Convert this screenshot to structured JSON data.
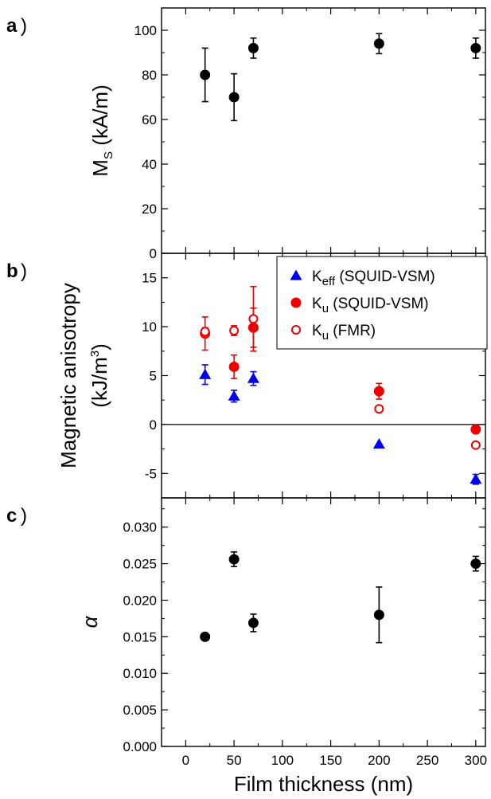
{
  "chart_data": [
    {
      "type": "scatter",
      "panel_label": "a",
      "xlabel": "",
      "ylabel": "M",
      "ylabel_sub": "S",
      "ylabel_unit": " (kA/m)",
      "xlim": [
        -25,
        310
      ],
      "ylim": [
        0,
        110
      ],
      "yticks": [
        "0",
        "20",
        "40",
        "60",
        "80",
        "100"
      ],
      "yvalues": [
        0,
        20,
        40,
        60,
        80,
        100
      ],
      "series": [
        {
          "marker": "filled-circle",
          "color": "#000000",
          "points": [
            {
              "x": 20,
              "y": 80,
              "err": 12
            },
            {
              "x": 50,
              "y": 70,
              "err": 10.5
            },
            {
              "x": 70,
              "y": 92,
              "err": 4.5
            },
            {
              "x": 200,
              "y": 94,
              "err": 4.5
            },
            {
              "x": 300,
              "y": 92,
              "err": 4.5
            }
          ]
        }
      ]
    },
    {
      "type": "scatter",
      "panel_label": "b",
      "xlabel": "",
      "ylabel_line1": "Magnetic anisotropy",
      "ylabel_line2": "(kJ/m",
      "ylabel_sup": "3",
      "ylabel_close": ")",
      "xlim": [
        -25,
        310
      ],
      "ylim": [
        -7.5,
        17.5
      ],
      "yticks": [
        "-5",
        "0",
        "5",
        "10",
        "15"
      ],
      "yvalues": [
        -5,
        0,
        5,
        10,
        15
      ],
      "zero_line": true,
      "legend": {
        "position": "top-right",
        "items": [
          {
            "main": "K",
            "sub": "eff",
            "rest": " (SQUID-VSM)"
          },
          {
            "main": "K",
            "sub": "u",
            "rest": " (SQUID-VSM)"
          },
          {
            "main": "K",
            "sub": "u",
            "rest": " (FMR)"
          }
        ]
      },
      "series": [
        {
          "marker": "filled-triangle",
          "color": "#0000ee",
          "points": [
            {
              "x": 20,
              "y": 5.1,
              "err": 1.0
            },
            {
              "x": 50,
              "y": 2.9,
              "err": 0.6
            },
            {
              "x": 70,
              "y": 4.7,
              "err": 0.7
            },
            {
              "x": 200,
              "y": -2.0,
              "err": 0
            },
            {
              "x": 300,
              "y": -5.6,
              "err": 0.5
            }
          ]
        },
        {
          "marker": "filled-circle",
          "color": "#ee0000",
          "points": [
            {
              "x": 20,
              "y": 9.3,
              "err": 1.7
            },
            {
              "x": 50,
              "y": 5.9,
              "err": 1.2
            },
            {
              "x": 70,
              "y": 9.9,
              "err": 2.0
            },
            {
              "x": 200,
              "y": 3.4,
              "err": 0.8
            },
            {
              "x": 300,
              "y": -0.5,
              "err": 0.4
            }
          ]
        },
        {
          "marker": "open-circle",
          "color": "#ee0000",
          "points": [
            {
              "x": 20,
              "y": 9.5,
              "err": 0.4
            },
            {
              "x": 50,
              "y": 9.6,
              "err": 0.5
            },
            {
              "x": 70,
              "y": 10.8,
              "err": 3.3
            },
            {
              "x": 200,
              "y": 1.6,
              "err": 0.2
            },
            {
              "x": 300,
              "y": -2.1,
              "err": 0.2
            }
          ]
        }
      ]
    },
    {
      "type": "scatter",
      "panel_label": "c",
      "xlabel": "Film thickness (nm)",
      "ylabel": "α",
      "xlim": [
        -25,
        310
      ],
      "ylim": [
        0,
        0.034
      ],
      "xticks": [
        "0",
        "50",
        "100",
        "150",
        "200",
        "250",
        "300"
      ],
      "xvalues": [
        0,
        50,
        100,
        150,
        200,
        250,
        300
      ],
      "yticks": [
        "0.000",
        "0.005",
        "0.010",
        "0.015",
        "0.020",
        "0.025",
        "0.030"
      ],
      "yvalues": [
        0,
        0.005,
        0.01,
        0.015,
        0.02,
        0.025,
        0.03
      ],
      "series": [
        {
          "marker": "filled-circle",
          "color": "#000000",
          "points": [
            {
              "x": 20,
              "y": 0.015,
              "err": 0.0003
            },
            {
              "x": 50,
              "y": 0.0256,
              "err": 0.001
            },
            {
              "x": 70,
              "y": 0.0169,
              "err": 0.0012
            },
            {
              "x": 200,
              "y": 0.018,
              "err": 0.0038
            },
            {
              "x": 300,
              "y": 0.025,
              "err": 0.001
            }
          ]
        }
      ]
    }
  ]
}
